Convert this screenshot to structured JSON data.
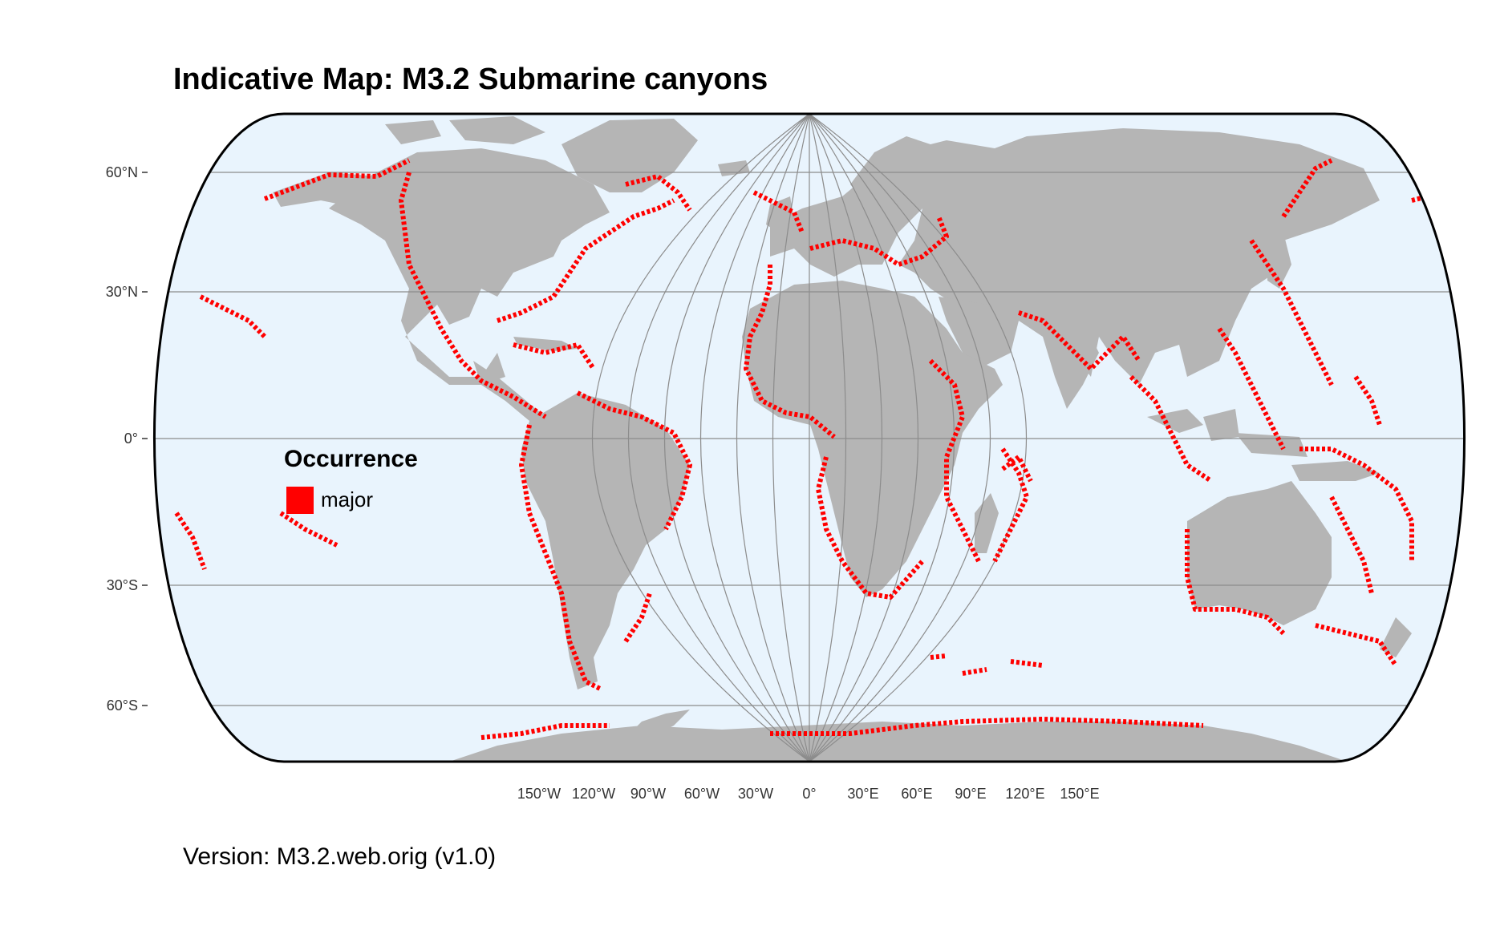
{
  "title": "Indicative Map: M3.2 Submarine canyons",
  "version_text": "Version: M3.2.web.orig (v1.0)",
  "colors": {
    "ocean": "#e9f4fd",
    "land": "#b5b5b5",
    "occurrence": "#ff0000",
    "graticule": "#8c8c8c",
    "outline": "#000000"
  },
  "latitude_labels": [
    "60°N",
    "30°N",
    "0°",
    "30°S",
    "60°S"
  ],
  "longitude_labels": [
    "150°W",
    "120°W",
    "90°W",
    "60°W",
    "30°W",
    "0°",
    "30°E",
    "60°E",
    "90°E",
    "120°E",
    "150°E"
  ],
  "legend": {
    "title": "Occurrence",
    "items": [
      {
        "label": "major",
        "color": "#ff0000"
      }
    ]
  }
}
